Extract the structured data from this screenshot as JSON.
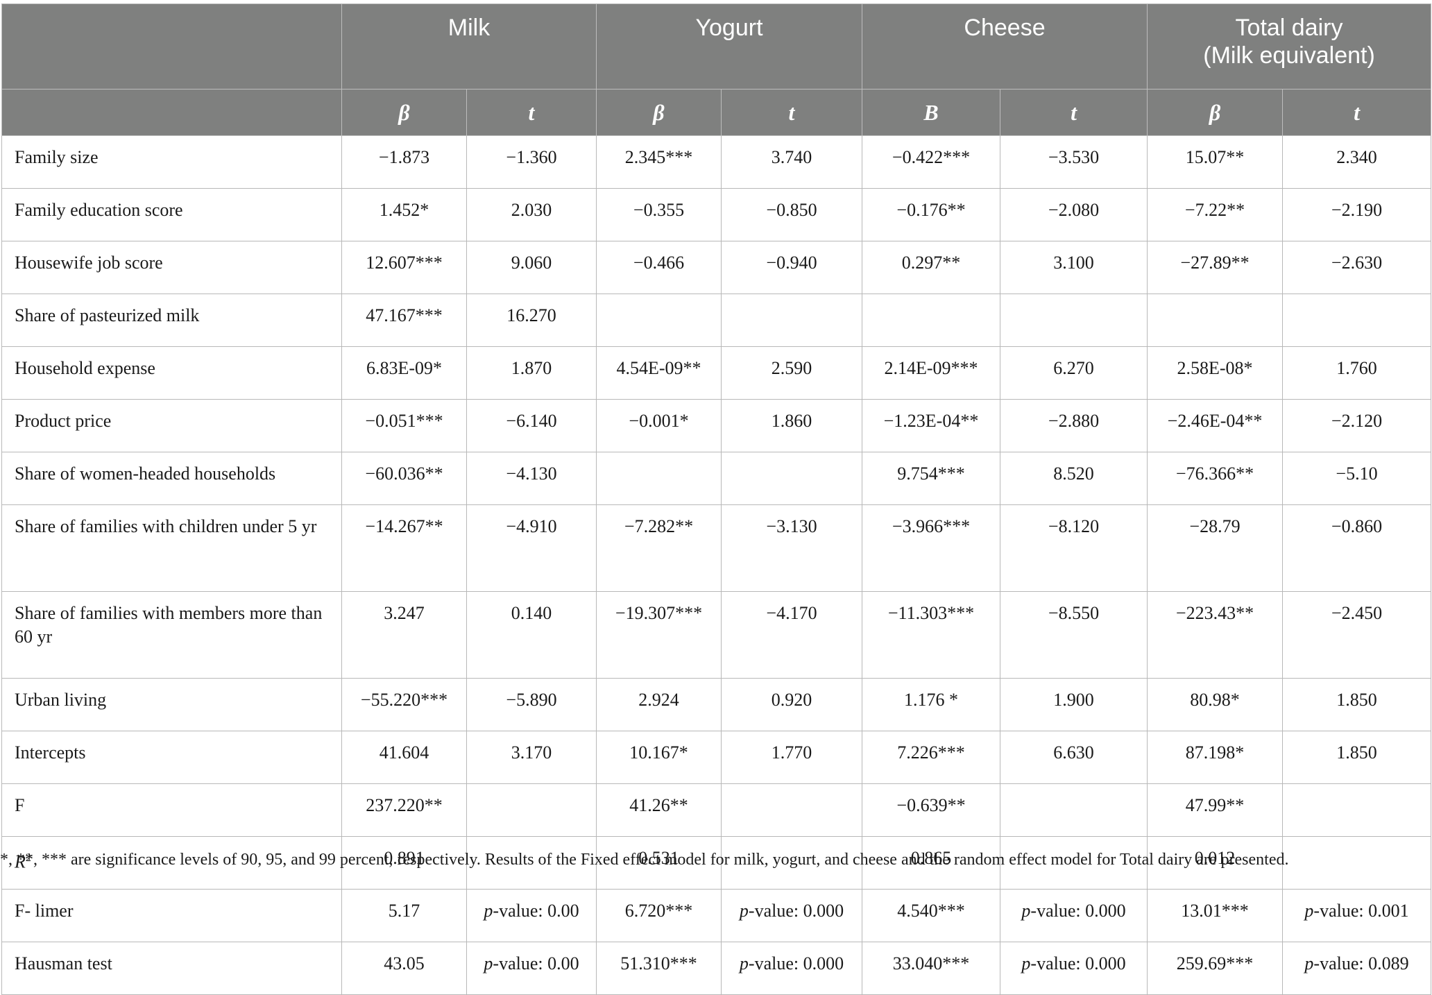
{
  "groups": {
    "milk": "Milk",
    "yogurt": "Yogurt",
    "cheese": "Cheese",
    "total_line1": "Total dairy",
    "total_line2": "(Milk equivalent)"
  },
  "subheaders": [
    "β",
    "t",
    "β",
    "t",
    "B",
    "t",
    "β",
    "t"
  ],
  "rows": [
    {
      "label": "Family size",
      "cells": [
        "−1.873",
        "−1.360",
        "2.345***",
        "3.740",
        "−0.422***",
        "−3.530",
        "15.07**",
        "2.340"
      ]
    },
    {
      "label": "Family education score",
      "cells": [
        "1.452*",
        "2.030",
        "−0.355",
        "−0.850",
        "−0.176**",
        "−2.080",
        "−7.22**",
        "−2.190"
      ]
    },
    {
      "label": "Housewife job score",
      "cells": [
        "12.607***",
        "9.060",
        "−0.466",
        "−0.940",
        "0.297**",
        "3.100",
        "−27.89**",
        "−2.630"
      ]
    },
    {
      "label": "Share of pasteurized milk",
      "cells": [
        "47.167***",
        "16.270",
        "",
        "",
        "",
        "",
        "",
        ""
      ]
    },
    {
      "label": "Household expense",
      "cells": [
        "6.83E-09*",
        "1.870",
        "4.54E-09**",
        "2.590",
        "2.14E-09***",
        "6.270",
        "2.58E-08*",
        "1.760"
      ]
    },
    {
      "label": "Product price",
      "cells": [
        "−0.051***",
        "−6.140",
        "−0.001*",
        "1.860",
        "−1.23E-04**",
        "−2.880",
        "−2.46E-04**",
        "−2.120"
      ]
    },
    {
      "label": "Share of women-headed households",
      "cells": [
        "−60.036**",
        "−4.130",
        "",
        "",
        "9.754***",
        "8.520",
        "−76.366**",
        "−5.10"
      ]
    },
    {
      "label": "Share of families with children under 5 yr",
      "cells": [
        "−14.267**",
        "−4.910",
        "−7.282**",
        "−3.130",
        "−3.966***",
        "−8.120",
        "−28.79",
        "−0.860"
      ]
    },
    {
      "label": "Share of families with members more than 60 yr",
      "cells": [
        "3.247",
        "0.140",
        "−19.307***",
        "−4.170",
        "−11.303***",
        "−8.550",
        "−223.43**",
        "−2.450"
      ]
    },
    {
      "label": "Urban living",
      "cells": [
        "−55.220***",
        "−5.890",
        "2.924",
        "0.920",
        "1.176 *",
        "1.900",
        "80.98*",
        "1.850"
      ]
    },
    {
      "label": "Intercepts",
      "cells": [
        "41.604",
        "3.170",
        "10.167*",
        "1.770",
        "7.226***",
        "6.630",
        "87.198*",
        "1.850"
      ]
    },
    {
      "label": "F",
      "cells": [
        "237.220**",
        "",
        "41.26**",
        "",
        "−0.639**",
        "",
        "47.99**",
        ""
      ]
    },
    {
      "label": "R",
      "label_sup": "2",
      "cells": [
        "0.891",
        "",
        "0.531",
        "",
        "0.865",
        "",
        "0.012",
        ""
      ]
    },
    {
      "label": "F- limer",
      "cells": [
        "5.17",
        "p-value: 0.00",
        "6.720***",
        "p-value: 0.000",
        "4.540***",
        "p-value: 0.000",
        "13.01***",
        "p-value: 0.001"
      ]
    },
    {
      "label": "Hausman test",
      "cells": [
        "43.05",
        "p-value: 0.00",
        "51.310***",
        "p-value: 0.000",
        "33.040***",
        "p-value: 0.000",
        "259.69***",
        "p-value: 0.089"
      ]
    }
  ],
  "footnote": "*, **, *** are significance levels of 90, 95, and 99 percent, respectively. Results of the Fixed effect model for milk, yogurt, and cheese and the random effect model for Total dairy are presented."
}
